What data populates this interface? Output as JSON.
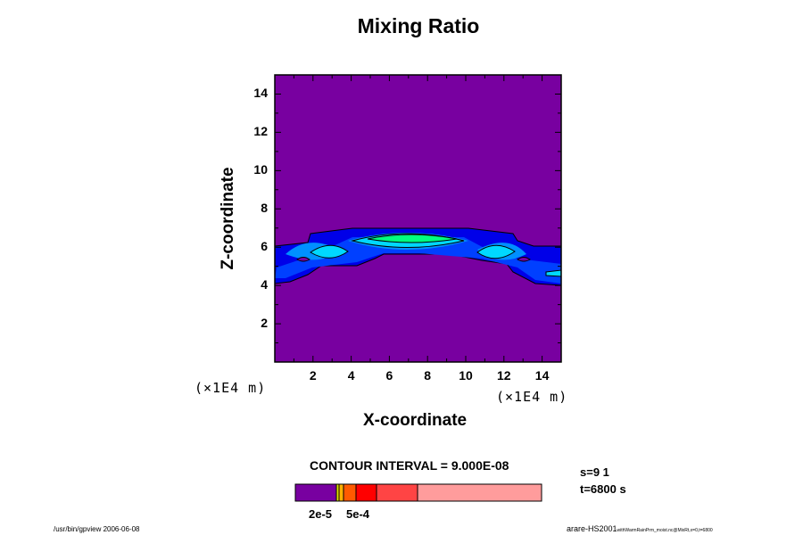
{
  "chart_data": {
    "type": "contour",
    "title": "Mixing Ratio",
    "xlabel": "X-coordinate",
    "ylabel": "Z-coordinate",
    "x_unit": "(×1E4 m)",
    "y_unit": "(×1E4 m)",
    "xlim": [
      0,
      15
    ],
    "ylim": [
      0,
      15
    ],
    "xticks": [
      "2",
      "4",
      "6",
      "8",
      "10",
      "12",
      "14"
    ],
    "yticks": [
      "2",
      "4",
      "6",
      "8",
      "10",
      "12",
      "14"
    ],
    "contour_interval": "CONTOUR INTERVAL = 9.000E-08",
    "colorbar_labels": [
      "2e-5",
      "5e-4"
    ],
    "colors": {
      "background": "#7800a0",
      "level1": "#0000e8",
      "level2": "#0040ff",
      "level3": "#0090ff",
      "level4": "#00d8ff",
      "level5": "#00ff80"
    },
    "colorbar_colors": [
      "#7800a0",
      "#e0e000",
      "#ffb000",
      "#ff5a00",
      "#ff0000",
      "#ff4444",
      "#ff9c9c"
    ]
  },
  "info": {
    "s": "s=9 1",
    "t": "t=6800 s"
  },
  "footer": {
    "left": "/usr/bin/gpview 2006-06-08",
    "right_main": "arare-HS2001",
    "right_small": "withWarmRainPrm_moist.nc@MixRt,x=0,t=6800"
  }
}
